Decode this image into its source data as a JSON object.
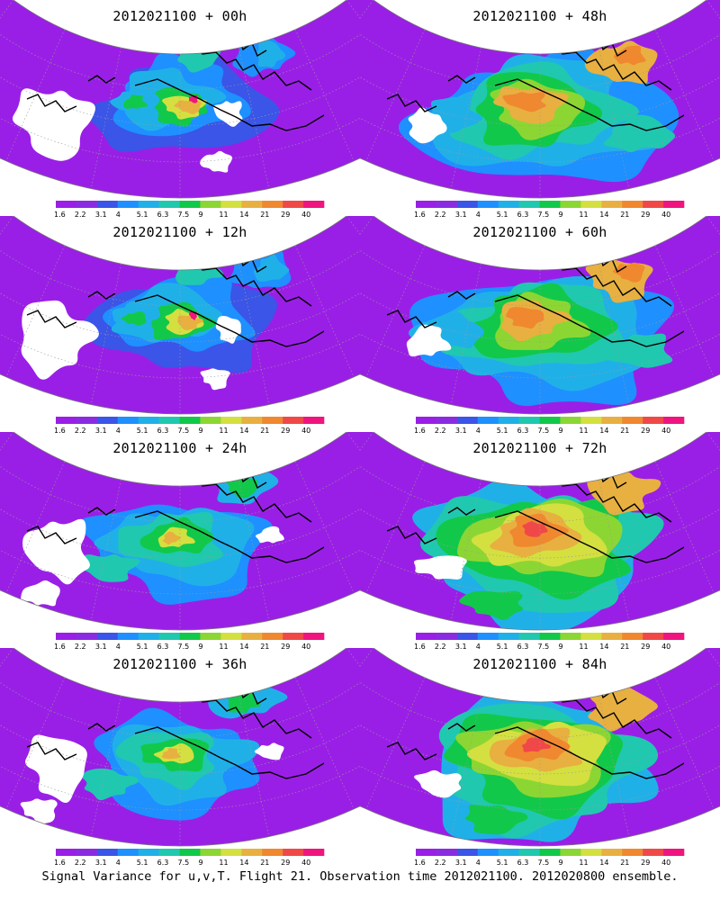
{
  "panels": [
    {
      "title": "2012021100 + 00h",
      "style": 0
    },
    {
      "title": "2012021100 + 48h",
      "style": 2
    },
    {
      "title": "2012021100 + 12h",
      "style": 0
    },
    {
      "title": "2012021100 + 60h",
      "style": 2
    },
    {
      "title": "2012021100 + 24h",
      "style": 1
    },
    {
      "title": "2012021100 + 72h",
      "style": 3
    },
    {
      "title": "2012021100 + 36h",
      "style": 1
    },
    {
      "title": "2012021100 + 84h",
      "style": 3
    }
  ],
  "colorbar": {
    "labels": [
      "1.6",
      "2.2",
      "3.1",
      "4",
      "5.1",
      "6.3",
      "7.5",
      "9",
      "11",
      "14",
      "21",
      "29",
      "40"
    ],
    "colors": [
      "#9a1fe6",
      "#8a2be2",
      "#3a55e8",
      "#1e90ff",
      "#20b0e8",
      "#20c8b0",
      "#12c84a",
      "#8cd633",
      "#d4e040",
      "#e8b040",
      "#f08830",
      "#f04848",
      "#f0147e"
    ]
  },
  "palette": {
    "background": "#ffffff",
    "coast": "#000000",
    "graticule": "#9a9a9a",
    "text": "#000000"
  },
  "footer": "Signal Variance for u,v,T. Flight 21. Observation time 2012021100. 2012020800 ensemble."
}
